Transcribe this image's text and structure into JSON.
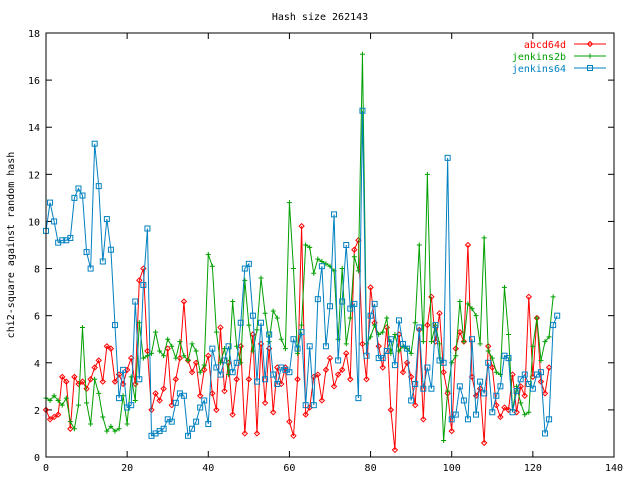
{
  "chart_data": {
    "type": "line",
    "title": "Hash size 262143",
    "xlabel": "",
    "ylabel": "chi2-square against random hash",
    "xlim": [
      0,
      140
    ],
    "ylim": [
      0,
      18
    ],
    "xticks": [
      0,
      20,
      40,
      60,
      80,
      100,
      120,
      140
    ],
    "yticks": [
      0,
      2,
      4,
      6,
      8,
      10,
      12,
      14,
      16,
      18
    ],
    "legend_position": "top-right",
    "series": [
      {
        "name": "abcd64d",
        "color": "#ff0000",
        "marker": "diamond",
        "x_start": 0,
        "values": [
          2.0,
          1.6,
          1.7,
          1.8,
          3.4,
          3.2,
          1.2,
          3.4,
          3.1,
          3.2,
          2.9,
          3.3,
          3.8,
          4.1,
          3.2,
          4.7,
          4.6,
          3.2,
          3.5,
          3.1,
          3.7,
          4.2,
          3.1,
          7.5,
          8.0,
          4.5,
          2.0,
          2.7,
          2.4,
          2.9,
          4.6,
          2.2,
          3.3,
          4.2,
          6.6,
          4.1,
          3.6,
          4.0,
          2.6,
          3.7,
          4.3,
          2.7,
          2.0,
          5.5,
          2.8,
          4.0,
          1.8,
          3.3,
          4.7,
          1.0,
          3.3,
          5.2,
          1.0,
          4.8,
          2.3,
          4.6,
          1.9,
          3.8,
          3.1,
          3.8,
          1.5,
          0.9,
          3.3,
          9.8,
          1.8,
          2.1,
          3.4,
          3.5,
          2.4,
          3.7,
          4.2,
          3.0,
          3.5,
          3.7,
          4.4,
          3.3,
          8.8,
          9.2,
          4.8,
          3.3,
          7.2,
          5.7,
          4.7,
          3.8,
          5.5,
          2.0,
          0.3,
          5.2,
          3.6,
          4.0,
          3.4,
          2.2,
          5.4,
          1.6,
          5.6,
          6.8,
          4.9,
          6.1,
          3.6,
          2.7,
          1.1,
          4.6,
          5.3,
          4.9,
          9.0,
          3.4,
          2.6,
          2.9,
          0.6,
          4.7,
          3.8,
          2.2,
          1.7,
          2.1,
          2.0,
          3.5,
          1.9,
          3.0,
          2.6,
          6.8,
          3.4,
          5.9,
          3.2,
          2.7,
          3.8
        ]
      },
      {
        "name": "jenkins2b",
        "color": "#00a000",
        "marker": "plus",
        "x_start": 0,
        "values": [
          2.5,
          2.4,
          2.6,
          2.4,
          2.2,
          2.5,
          1.5,
          1.2,
          2.2,
          5.5,
          2.3,
          1.4,
          3.3,
          2.7,
          1.7,
          1.1,
          1.3,
          1.1,
          1.2,
          2.6,
          1.4,
          3.4,
          2.4,
          5.7,
          4.2,
          4.3,
          4.4,
          5.3,
          4.5,
          4.3,
          5.0,
          4.7,
          4.2,
          4.9,
          4.3,
          4.1,
          4.8,
          4.5,
          3.6,
          3.9,
          8.6,
          8.1,
          5.3,
          4.0,
          4.6,
          3.5,
          6.6,
          4.7,
          4.0,
          7.5,
          5.6,
          4.5,
          5.4,
          7.6,
          6.1,
          4.9,
          6.2,
          5.9,
          5.0,
          4.6,
          10.8,
          8.0,
          4.4,
          5.6,
          9.0,
          8.9,
          7.8,
          8.4,
          8.3,
          8.2,
          8.1,
          7.9,
          5.0,
          8.0,
          4.8,
          5.9,
          8.5,
          7.9,
          17.1,
          4.8,
          5.1,
          5.6,
          5.2,
          5.3,
          5.9,
          4.4,
          5.2,
          4.5,
          4.7,
          4.6,
          4.4,
          5.7,
          9.0,
          4.9,
          12.0,
          4.9,
          5.6,
          4.8,
          0.7,
          2.8,
          4.0,
          4.3,
          6.6,
          4.9,
          6.5,
          6.3,
          6.0,
          4.8,
          9.3,
          4.5,
          4.2,
          3.6,
          3.5,
          7.2,
          5.2,
          2.0,
          3.0,
          2.3,
          1.8,
          1.9,
          4.7,
          5.9,
          4.1,
          4.9,
          5.1,
          6.8
        ]
      },
      {
        "name": "jenkins64",
        "color": "#0080c0",
        "marker": "square",
        "x_start": 0,
        "values": [
          9.6,
          10.8,
          10.0,
          9.1,
          9.2,
          9.2,
          9.3,
          11.0,
          11.4,
          11.1,
          8.7,
          8.0,
          13.3,
          11.5,
          8.3,
          10.1,
          8.8,
          5.6,
          2.5,
          3.7,
          2.1,
          2.2,
          6.6,
          3.3,
          7.3,
          9.7,
          0.9,
          1.0,
          1.1,
          1.2,
          1.6,
          1.5,
          2.3,
          2.7,
          2.6,
          0.9,
          1.2,
          1.5,
          2.1,
          2.4,
          1.4,
          4.6,
          3.8,
          3.5,
          4.1,
          4.7,
          3.6,
          4.0,
          5.7,
          8.0,
          8.2,
          6.0,
          3.2,
          5.7,
          3.3,
          5.2,
          3.5,
          3.1,
          3.8,
          3.7,
          3.6,
          5.0,
          4.6,
          5.3,
          2.2,
          4.7,
          2.2,
          6.7,
          8.1,
          4.7,
          6.4,
          10.3,
          4.1,
          6.6,
          9.0,
          6.3,
          6.5,
          2.5,
          14.7,
          4.3,
          6.0,
          6.5,
          4.2,
          4.2,
          4.5,
          5.0,
          3.9,
          5.8,
          4.8,
          4.6,
          2.4,
          3.1,
          5.5,
          2.9,
          3.8,
          2.9,
          5.6,
          4.1,
          4.0,
          12.7,
          1.6,
          1.8,
          3.0,
          2.4,
          1.6,
          5.0,
          1.8,
          3.2,
          2.7,
          4.0,
          1.9,
          2.6,
          3.0,
          4.3,
          4.2,
          1.9,
          2.8,
          3.3,
          3.5,
          3.1,
          2.9,
          3.5,
          3.6,
          1.0,
          1.6,
          5.6,
          6.0
        ]
      }
    ]
  }
}
